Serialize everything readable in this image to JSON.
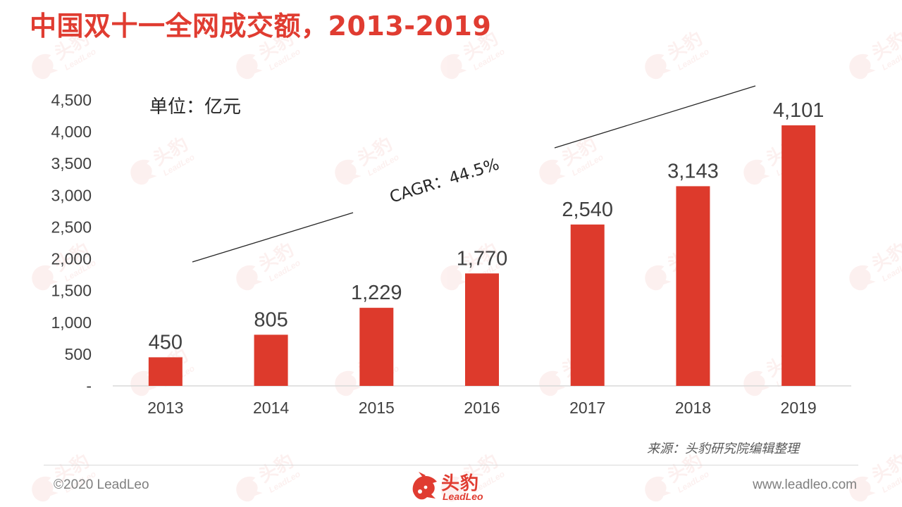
{
  "title": "中国双十一全网成交额，2013-2019",
  "unit_label": "单位：亿元",
  "cagr_label": "CAGR：44.5%",
  "source": "来源：头豹研究院编辑整理",
  "footer": {
    "copyright": "©2020 LeadLeo",
    "website": "www.leadleo.com",
    "logo_cn": "头豹",
    "logo_en": "LeadLeo"
  },
  "watermark": {
    "text_cn": "头豹",
    "text_en": "LeadLeo"
  },
  "colors": {
    "accent": "#e03c31",
    "bar": "#dd3a2c",
    "text": "#404040",
    "axis": "#d9d9d9"
  },
  "chart_data": {
    "type": "bar",
    "categories": [
      "2013",
      "2014",
      "2015",
      "2016",
      "2017",
      "2018",
      "2019"
    ],
    "values": [
      450,
      805,
      1229,
      1770,
      2540,
      3143,
      4101
    ],
    "value_labels": [
      "450",
      "805",
      "1,229",
      "1,770",
      "2,540",
      "3,143",
      "4,101"
    ],
    "y_ticks": [
      0,
      500,
      1000,
      1500,
      2000,
      2500,
      3000,
      3500,
      4000,
      4500
    ],
    "y_tick_labels": [
      "-",
      "500",
      "1,000",
      "1,500",
      "2,000",
      "2,500",
      "3,000",
      "3,500",
      "4,000",
      "4,500"
    ],
    "ylim": [
      0,
      4500
    ],
    "annotations": [
      "单位：亿元",
      "CAGR：44.5%"
    ],
    "grid": false,
    "legend": "none"
  }
}
